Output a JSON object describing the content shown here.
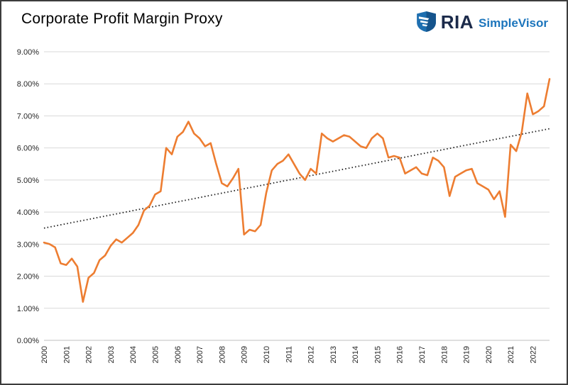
{
  "header": {
    "title": "Corporate Profit Margin Proxy",
    "logo": {
      "ria": "RIA",
      "simplevisor": "SimpleVisor"
    }
  },
  "chart_data": {
    "type": "line",
    "title": "Corporate Profit Margin Proxy",
    "xlabel": "",
    "ylabel": "",
    "ylim": [
      0,
      9
    ],
    "y_tick_labels": [
      "0.00%",
      "1.00%",
      "2.00%",
      "3.00%",
      "4.00%",
      "5.00%",
      "6.00%",
      "7.00%",
      "8.00%",
      "9.00%"
    ],
    "x_tick_labels": [
      "2000",
      "2001",
      "2002",
      "2003",
      "2004",
      "2005",
      "2006",
      "2007",
      "2008",
      "2009",
      "2010",
      "2011",
      "2012",
      "2013",
      "2014",
      "2015",
      "2016",
      "2017",
      "2018",
      "2019",
      "2020",
      "2021",
      "2022"
    ],
    "points_per_year": 4,
    "grid": "horizontal",
    "legend": "none",
    "series": [
      {
        "name": "Corporate Profit Margin Proxy",
        "color": "#ED7D31",
        "line_width": 2.6,
        "values": [
          3.05,
          3.0,
          2.9,
          2.4,
          2.35,
          2.55,
          2.3,
          1.2,
          1.95,
          2.1,
          2.5,
          2.65,
          2.95,
          3.15,
          3.05,
          3.2,
          3.35,
          3.6,
          4.05,
          4.2,
          4.55,
          4.65,
          6.0,
          5.8,
          6.35,
          6.5,
          6.82,
          6.45,
          6.3,
          6.05,
          6.15,
          5.5,
          4.9,
          4.8,
          5.05,
          5.35,
          3.3,
          3.45,
          3.4,
          3.6,
          4.6,
          5.3,
          5.5,
          5.6,
          5.8,
          5.5,
          5.2,
          5.0,
          5.35,
          5.2,
          6.45,
          6.3,
          6.2,
          6.3,
          6.4,
          6.35,
          6.2,
          6.05,
          6.0,
          6.3,
          6.45,
          6.3,
          5.7,
          5.75,
          5.7,
          5.2,
          5.3,
          5.4,
          5.2,
          5.15,
          5.7,
          5.6,
          5.4,
          4.5,
          5.1,
          5.2,
          5.3,
          5.35,
          4.9,
          4.8,
          4.7,
          4.4,
          4.65,
          3.85,
          6.1,
          5.9,
          6.5,
          7.7,
          7.05,
          7.15,
          7.3,
          8.15
        ]
      }
    ],
    "trendline": {
      "name": "Linear trend",
      "style": "dotted",
      "color": "#1a1a1a",
      "start_value": 3.5,
      "end_value": 6.6
    },
    "colors": {
      "gridline": "#d9d9d9",
      "axis_line": "#bfbfbf",
      "axis_text": "#262626"
    }
  }
}
